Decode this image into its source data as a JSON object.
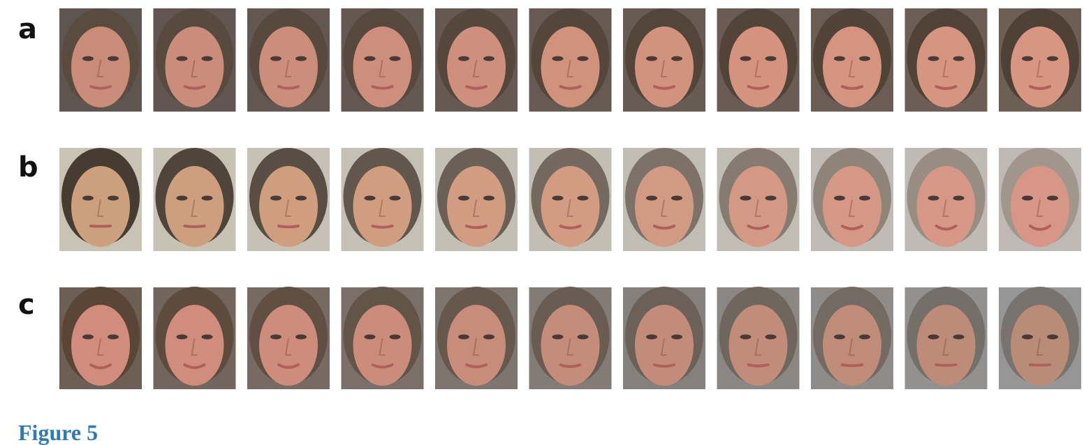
{
  "panels": [
    {
      "label": "a"
    },
    {
      "label": "b"
    },
    {
      "label": "c"
    }
  ],
  "caption": "Figure 5"
}
